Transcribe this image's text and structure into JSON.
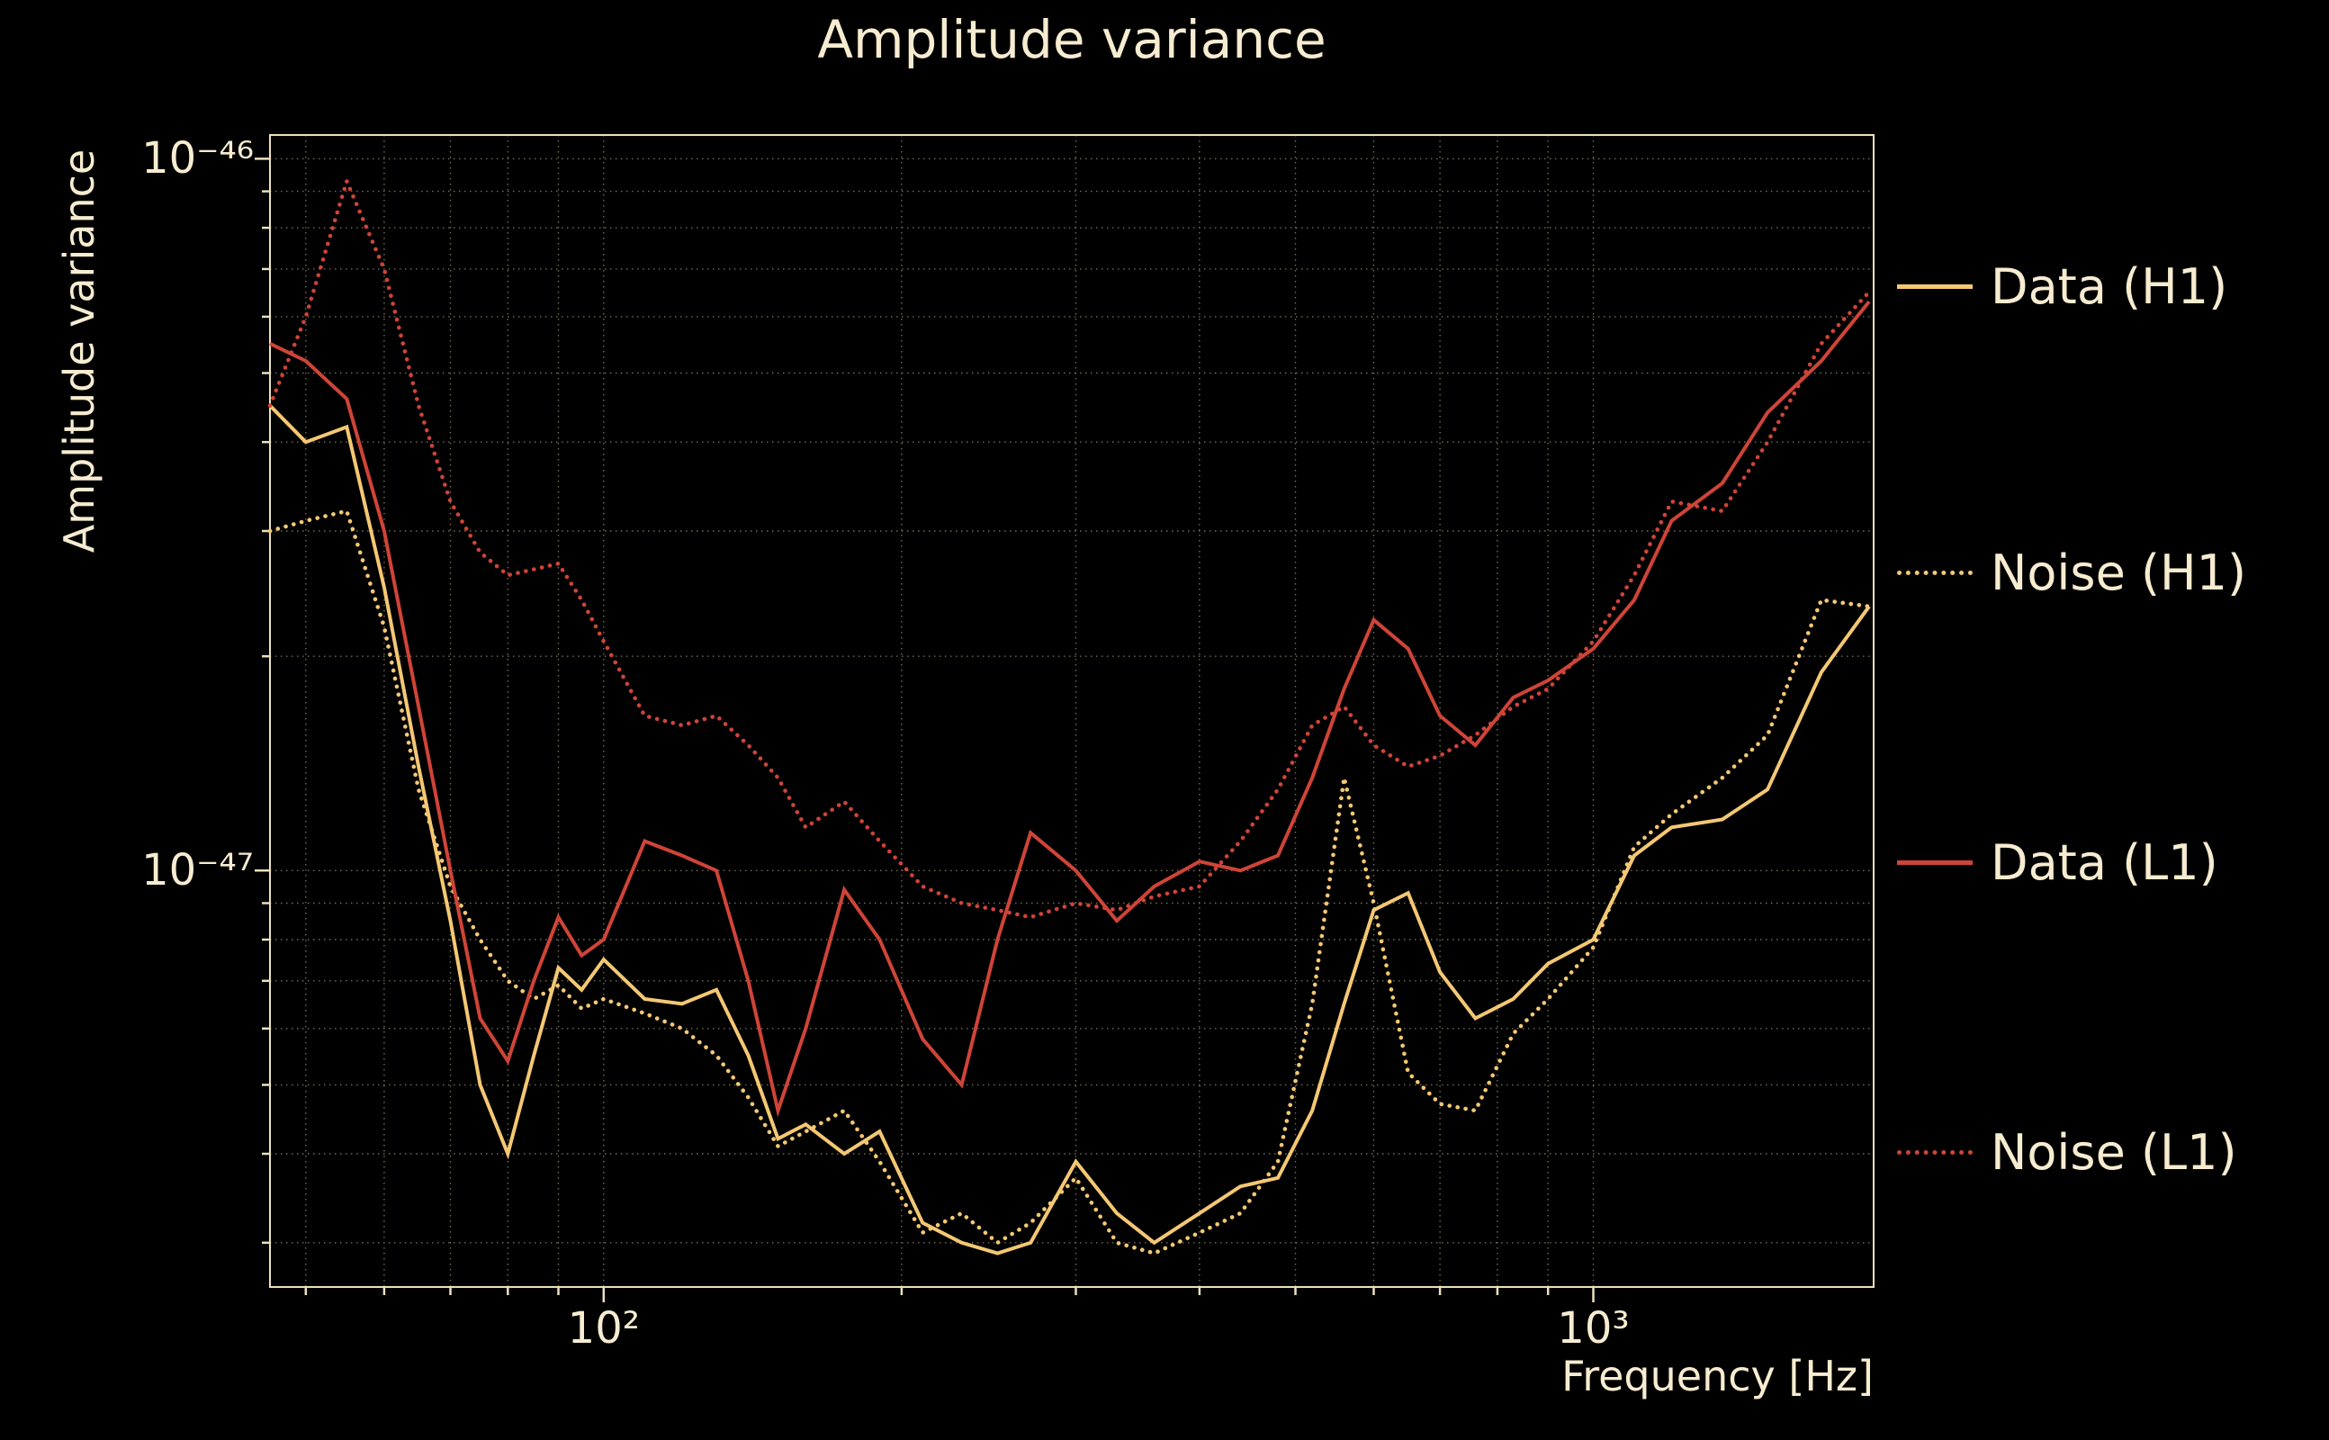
{
  "title": "Amplitude variance",
  "axes": {
    "x_label": "Frequency [Hz]",
    "y_label": "Amplitude variance",
    "x_ticks": [
      {
        "value": 100,
        "label": "10²"
      },
      {
        "value": 1000,
        "label": "10³"
      }
    ],
    "y_ticks": [
      {
        "value": 1e-47,
        "label": "10⁻⁴⁷"
      },
      {
        "value": 1e-46,
        "label": "10⁻⁴⁶"
      }
    ]
  },
  "legend": {
    "items": [
      {
        "label": "Data (H1)",
        "series": "data-h1"
      },
      {
        "label": "Noise (H1)",
        "series": "noise-h1"
      },
      {
        "label": "Data (L1)",
        "series": "data-l1"
      },
      {
        "label": "Noise (L1)",
        "series": "noise-l1"
      }
    ]
  },
  "colors": {
    "background": "#000000",
    "text": "#f7ecd0",
    "grid": "#cfc39a",
    "frame": "#ece0bd",
    "h1": "#f4c873",
    "l1": "#cf4438"
  },
  "chart_data": {
    "type": "line",
    "title": "Amplitude variance",
    "xlabel": "Frequency [Hz]",
    "ylabel": "Amplitude variance",
    "x_scale": "log",
    "y_scale": "log",
    "grid": true,
    "legend_position": "right-outside",
    "xlim": [
      46,
      1920
    ],
    "ylim": [
      2.6e-48,
      1.08e-46
    ],
    "x": [
      46,
      50,
      55,
      60,
      65,
      70,
      75,
      80,
      85,
      90,
      95,
      100,
      110,
      120,
      130,
      140,
      150,
      160,
      175,
      190,
      210,
      230,
      250,
      270,
      300,
      330,
      360,
      400,
      440,
      480,
      520,
      560,
      600,
      650,
      700,
      760,
      830,
      900,
      1000,
      1100,
      1200,
      1350,
      1500,
      1700,
      1900
    ],
    "value_scale": 1e-48,
    "series": [
      {
        "name": "Data (H1)",
        "color_key": "h1",
        "style": "solid",
        "values": [
          45,
          40,
          42,
          25,
          14,
          8.5,
          5.0,
          4.0,
          5.5,
          7.3,
          6.8,
          7.5,
          6.6,
          6.5,
          6.8,
          5.5,
          4.2,
          4.4,
          4.0,
          4.3,
          3.2,
          3.0,
          2.9,
          3.0,
          3.9,
          3.3,
          3.0,
          3.3,
          3.6,
          3.7,
          4.6,
          6.5,
          8.8,
          9.3,
          7.2,
          6.2,
          6.6,
          7.4,
          8.0,
          10.5,
          11.5,
          11.8,
          13.0,
          19.0,
          23.5
        ]
      },
      {
        "name": "Noise (H1)",
        "color_key": "h1",
        "style": "dotted",
        "values": [
          30,
          31,
          32,
          22,
          13,
          9.5,
          8.0,
          7.0,
          6.6,
          6.9,
          6.4,
          6.6,
          6.3,
          6.0,
          5.5,
          4.8,
          4.1,
          4.3,
          4.6,
          3.9,
          3.1,
          3.3,
          3.0,
          3.2,
          3.7,
          3.0,
          2.9,
          3.1,
          3.3,
          3.9,
          6.5,
          13.5,
          9.0,
          5.2,
          4.7,
          4.6,
          5.9,
          6.6,
          7.8,
          10.8,
          12.0,
          13.5,
          15.5,
          24.0,
          23.5
        ]
      },
      {
        "name": "Data (L1)",
        "color_key": "l1",
        "style": "solid",
        "values": [
          55,
          52,
          46,
          30,
          17,
          10,
          6.2,
          5.4,
          7.0,
          8.6,
          7.6,
          8.0,
          11.0,
          10.5,
          10.0,
          7.0,
          4.6,
          6.0,
          9.4,
          8.0,
          5.8,
          5.0,
          8.0,
          11.3,
          10.0,
          8.5,
          9.5,
          10.3,
          10.0,
          10.5,
          13.5,
          18.0,
          22.5,
          20.5,
          16.5,
          15.0,
          17.5,
          18.5,
          20.5,
          24.0,
          31.0,
          35.0,
          44.0,
          52.0,
          63.0
        ]
      },
      {
        "name": "Noise (L1)",
        "color_key": "l1",
        "style": "dotted",
        "values": [
          45,
          60,
          93,
          70,
          45,
          33,
          28,
          26,
          26.5,
          27,
          24,
          21,
          16.5,
          16.0,
          16.5,
          15.0,
          13.5,
          11.5,
          12.5,
          11.0,
          9.5,
          9.0,
          8.8,
          8.6,
          9.0,
          8.8,
          9.2,
          9.5,
          11.0,
          13.0,
          16.0,
          17.0,
          15.0,
          14.0,
          14.5,
          15.5,
          17.0,
          18.0,
          21.0,
          26.0,
          33.0,
          32.0,
          40.0,
          55.0,
          65.0
        ]
      }
    ]
  }
}
